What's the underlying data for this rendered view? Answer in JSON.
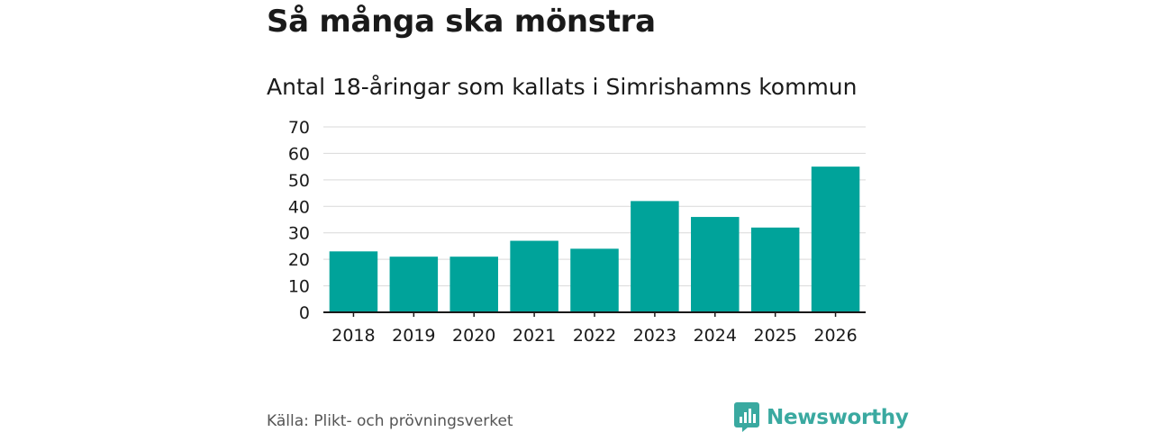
{
  "title": "Så många ska mönstra",
  "subtitle": "Antal 18-åringar som kallats i Simrishamns kommun",
  "source": "Källa: Plikt- och prövningsverket",
  "brand": {
    "name": "Newsworthy",
    "icon": "newsworthy-logo-icon",
    "color": "#3aa9a0"
  },
  "colors": {
    "bar": "#00a39a",
    "grid": "#d9d9d9",
    "axis": "#1a1a1a"
  },
  "chart_data": {
    "type": "bar",
    "title": "Så många ska mönstra",
    "subtitle": "Antal 18-åringar som kallats i Simrishamns kommun",
    "xlabel": "",
    "ylabel": "",
    "categories": [
      "2018",
      "2019",
      "2020",
      "2021",
      "2022",
      "2023",
      "2024",
      "2025",
      "2026"
    ],
    "values": [
      23,
      21,
      21,
      27,
      24,
      42,
      36,
      32,
      55
    ],
    "ylim": [
      0,
      70
    ],
    "yticks": [
      0,
      10,
      20,
      30,
      40,
      50,
      60,
      70
    ],
    "grid": true,
    "legend": "none"
  }
}
